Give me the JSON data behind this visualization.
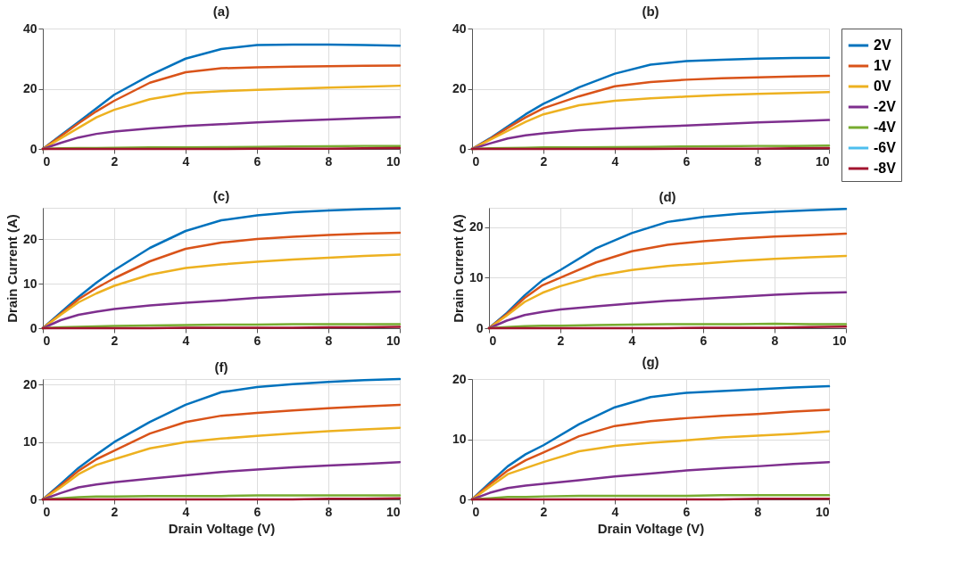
{
  "chart_data": [
    {
      "type": "line",
      "title": "(a)",
      "x": [
        0,
        0.5,
        1,
        1.5,
        2,
        3,
        4,
        5,
        6,
        7,
        8,
        9,
        10
      ],
      "xlim": [
        0,
        10
      ],
      "xticks": [
        0,
        2,
        4,
        6,
        8,
        10
      ],
      "ylim": [
        0,
        40
      ],
      "yticks": [
        0,
        20,
        40
      ],
      "grid": true,
      "series": [
        {
          "color": "#0072bd",
          "values": [
            0,
            4.5,
            9,
            13.5,
            18,
            24.5,
            30,
            33.2,
            34.5,
            34.7,
            34.7,
            34.5,
            34.3
          ]
        },
        {
          "color": "#d95319",
          "values": [
            0,
            4.2,
            8.5,
            12.5,
            16,
            22,
            25.5,
            26.8,
            27.1,
            27.3,
            27.5,
            27.6,
            27.7
          ]
        },
        {
          "color": "#edb120",
          "values": [
            0,
            3.5,
            7,
            10.5,
            13,
            16.5,
            18.5,
            19.2,
            19.6,
            20,
            20.4,
            20.7,
            21
          ]
        },
        {
          "color": "#7e2f8e",
          "values": [
            0,
            2,
            3.8,
            5,
            5.8,
            6.8,
            7.6,
            8.2,
            8.8,
            9.3,
            9.8,
            10.2,
            10.6
          ]
        },
        {
          "color": "#77ac30",
          "values": [
            0,
            0.2,
            0.3,
            0.3,
            0.4,
            0.5,
            0.5,
            0.6,
            0.7,
            0.8,
            0.9,
            1.0,
            1.0
          ]
        },
        {
          "color": "#a2142f",
          "values": [
            0,
            0,
            0,
            0,
            0,
            0,
            0,
            0,
            0.1,
            0.1,
            0.1,
            0.2,
            0.3
          ]
        }
      ]
    },
    {
      "type": "line",
      "title": "(b)",
      "x": [
        0,
        0.5,
        1,
        1.5,
        2,
        3,
        4,
        5,
        6,
        7,
        8,
        9,
        10
      ],
      "xlim": [
        0,
        10
      ],
      "xticks": [
        0,
        2,
        4,
        6,
        8,
        10
      ],
      "ylim": [
        0,
        40
      ],
      "yticks": [
        0,
        20,
        40
      ],
      "grid": true,
      "legend": "right",
      "series": [
        {
          "name": "2V",
          "color": "#0072bd",
          "values": [
            0,
            3.5,
            7.5,
            11.5,
            15,
            20.5,
            25,
            28,
            29.2,
            29.6,
            30,
            30.2,
            30.3
          ]
        },
        {
          "name": "1V",
          "color": "#d95319",
          "values": [
            0,
            3.3,
            7,
            10.5,
            13.5,
            17.5,
            20.8,
            22.2,
            23,
            23.5,
            23.8,
            24.1,
            24.3
          ]
        },
        {
          "name": "0V",
          "color": "#edb120",
          "values": [
            0,
            3,
            6,
            9,
            11.5,
            14.5,
            16,
            16.8,
            17.4,
            17.9,
            18.3,
            18.6,
            18.9
          ]
        },
        {
          "name": "-2V",
          "color": "#7e2f8e",
          "values": [
            0,
            1.8,
            3.5,
            4.5,
            5.2,
            6.2,
            6.8,
            7.3,
            7.8,
            8.3,
            8.8,
            9.2,
            9.6
          ]
        },
        {
          "name": "-4V",
          "color": "#77ac30",
          "values": [
            0,
            0.2,
            0.3,
            0.4,
            0.5,
            0.5,
            0.6,
            0.7,
            0.8,
            0.9,
            1,
            1,
            1.1
          ]
        },
        {
          "name": "-6V",
          "color": "#4dbeee",
          "values": [
            null,
            null,
            null,
            null,
            null,
            null,
            null,
            null,
            null,
            null,
            null,
            null,
            null
          ]
        },
        {
          "name": "-8V",
          "color": "#a2142f",
          "values": [
            0,
            0,
            0,
            0,
            0,
            0,
            0,
            0,
            0.1,
            0.1,
            0.1,
            0.2,
            0.3
          ]
        }
      ]
    },
    {
      "type": "line",
      "title": "(c)",
      "ylabel": "Drain Current (A)",
      "x": [
        0,
        0.5,
        1,
        1.5,
        2,
        3,
        4,
        5,
        6,
        7,
        8,
        9,
        10
      ],
      "xlim": [
        0,
        10
      ],
      "xticks": [
        0,
        2,
        4,
        6,
        8,
        10
      ],
      "ylim": [
        0,
        27
      ],
      "yticks": [
        0,
        10,
        20
      ],
      "grid": true,
      "series": [
        {
          "color": "#0072bd",
          "values": [
            0,
            3.5,
            7,
            10.2,
            13,
            18,
            21.8,
            24.2,
            25.3,
            26,
            26.4,
            26.7,
            26.9
          ]
        },
        {
          "color": "#d95319",
          "values": [
            0,
            3.2,
            6.5,
            9,
            11.2,
            15,
            17.8,
            19.2,
            20,
            20.5,
            20.9,
            21.2,
            21.4
          ]
        },
        {
          "color": "#edb120",
          "values": [
            0,
            3,
            5.8,
            7.8,
            9.5,
            12,
            13.5,
            14.3,
            14.9,
            15.4,
            15.8,
            16.2,
            16.5
          ]
        },
        {
          "color": "#7e2f8e",
          "values": [
            0,
            1.8,
            3,
            3.7,
            4.3,
            5.1,
            5.7,
            6.2,
            6.8,
            7.2,
            7.6,
            7.9,
            8.2
          ]
        },
        {
          "color": "#77ac30",
          "values": [
            0,
            0.2,
            0.3,
            0.4,
            0.5,
            0.6,
            0.7,
            0.8,
            0.8,
            0.9,
            0.9,
            0.9,
            0.9
          ]
        },
        {
          "color": "#a2142f",
          "values": [
            0,
            0,
            0,
            0,
            0,
            0,
            0.1,
            0.1,
            0.1,
            0.1,
            0.2,
            0.2,
            0.3
          ]
        }
      ]
    },
    {
      "type": "line",
      "title": "(d)",
      "ylabel": "Drain Current (A)",
      "x": [
        0,
        0.5,
        1,
        1.5,
        2,
        3,
        4,
        5,
        6,
        7,
        8,
        9,
        10
      ],
      "xlim": [
        0,
        10
      ],
      "xticks": [
        0,
        2,
        4,
        6,
        8,
        10
      ],
      "ylim": [
        0,
        23.8
      ],
      "yticks": [
        0,
        10,
        20
      ],
      "grid": true,
      "series": [
        {
          "color": "#0072bd",
          "values": [
            0,
            3,
            6.5,
            9.5,
            11.5,
            15.8,
            18.8,
            21,
            22,
            22.6,
            23,
            23.3,
            23.6
          ]
        },
        {
          "color": "#d95319",
          "values": [
            0,
            2.8,
            6,
            8.5,
            10,
            13,
            15.2,
            16.5,
            17.2,
            17.7,
            18.1,
            18.4,
            18.7
          ]
        },
        {
          "color": "#edb120",
          "values": [
            0,
            2.5,
            5.2,
            7,
            8.3,
            10.3,
            11.5,
            12.3,
            12.8,
            13.3,
            13.7,
            14,
            14.3
          ]
        },
        {
          "color": "#7e2f8e",
          "values": [
            0,
            1.5,
            2.6,
            3.2,
            3.7,
            4.3,
            4.9,
            5.4,
            5.8,
            6.2,
            6.6,
            6.9,
            7.1
          ]
        },
        {
          "color": "#77ac30",
          "values": [
            0,
            0.2,
            0.4,
            0.5,
            0.5,
            0.6,
            0.7,
            0.8,
            0.8,
            0.8,
            0.9,
            0.8,
            0.8
          ]
        },
        {
          "color": "#a2142f",
          "values": [
            0,
            0,
            0,
            0,
            0,
            0,
            0,
            0,
            0.1,
            0.1,
            0.1,
            0.2,
            0.3
          ]
        }
      ]
    },
    {
      "type": "line",
      "title": "(f)",
      "xlabel": "Drain Voltage (V)",
      "x": [
        0,
        0.5,
        1,
        1.5,
        2,
        3,
        4,
        5,
        6,
        7,
        8,
        9,
        10
      ],
      "xlim": [
        0,
        10
      ],
      "xticks": [
        0,
        2,
        4,
        6,
        8,
        10
      ],
      "ylim": [
        0,
        21
      ],
      "yticks": [
        0,
        10,
        20
      ],
      "grid": true,
      "series": [
        {
          "color": "#0072bd",
          "values": [
            0,
            2.7,
            5.5,
            7.8,
            10,
            13.5,
            16.5,
            18.7,
            19.6,
            20.1,
            20.5,
            20.8,
            21
          ]
        },
        {
          "color": "#d95319",
          "values": [
            0,
            2.4,
            5,
            7,
            8.5,
            11.5,
            13.5,
            14.6,
            15.1,
            15.5,
            15.9,
            16.2,
            16.5
          ]
        },
        {
          "color": "#edb120",
          "values": [
            0,
            2.1,
            4.4,
            6,
            7,
            8.9,
            10,
            10.6,
            11.1,
            11.5,
            11.9,
            12.2,
            12.5
          ]
        },
        {
          "color": "#7e2f8e",
          "values": [
            0,
            1.1,
            2.1,
            2.6,
            3,
            3.6,
            4.2,
            4.8,
            5.2,
            5.6,
            5.9,
            6.2,
            6.5
          ]
        },
        {
          "color": "#77ac30",
          "values": [
            0,
            0.2,
            0.4,
            0.5,
            0.5,
            0.6,
            0.6,
            0.6,
            0.7,
            0.7,
            0.7,
            0.7,
            0.7
          ]
        },
        {
          "color": "#a2142f",
          "values": [
            0,
            0,
            0,
            0,
            0,
            0,
            0,
            0,
            0,
            0,
            0.1,
            0.1,
            0.2
          ]
        }
      ]
    },
    {
      "type": "line",
      "title": "(g)",
      "xlabel": "Drain Voltage (V)",
      "x": [
        0,
        0.5,
        1,
        1.5,
        2,
        3,
        4,
        5,
        6,
        7,
        8,
        9,
        10
      ],
      "xlim": [
        0,
        10
      ],
      "xticks": [
        0,
        2,
        4,
        6,
        8,
        10
      ],
      "ylim": [
        0,
        20
      ],
      "yticks": [
        0,
        10,
        20
      ],
      "grid": true,
      "series": [
        {
          "color": "#0072bd",
          "values": [
            0,
            2.8,
            5.5,
            7.5,
            9,
            12.5,
            15.3,
            17,
            17.7,
            18,
            18.3,
            18.6,
            18.8
          ]
        },
        {
          "color": "#d95319",
          "values": [
            0,
            2.5,
            4.8,
            6.5,
            7.8,
            10.5,
            12.2,
            13,
            13.5,
            13.9,
            14.2,
            14.6,
            14.9
          ]
        },
        {
          "color": "#edb120",
          "values": [
            0,
            2.1,
            4.2,
            5.2,
            6.2,
            8,
            8.9,
            9.4,
            9.8,
            10.3,
            10.6,
            10.9,
            11.3
          ]
        },
        {
          "color": "#7e2f8e",
          "values": [
            0,
            1.1,
            1.9,
            2.3,
            2.6,
            3.2,
            3.8,
            4.3,
            4.8,
            5.2,
            5.5,
            5.9,
            6.2
          ]
        },
        {
          "color": "#77ac30",
          "values": [
            0,
            0.2,
            0.4,
            0.4,
            0.5,
            0.6,
            0.6,
            0.6,
            0.6,
            0.7,
            0.7,
            0.7,
            0.7
          ]
        },
        {
          "color": "#a2142f",
          "values": [
            0,
            0,
            0,
            0,
            0,
            0,
            0,
            0,
            0,
            0,
            0.1,
            0.1,
            0.1
          ]
        }
      ]
    }
  ]
}
